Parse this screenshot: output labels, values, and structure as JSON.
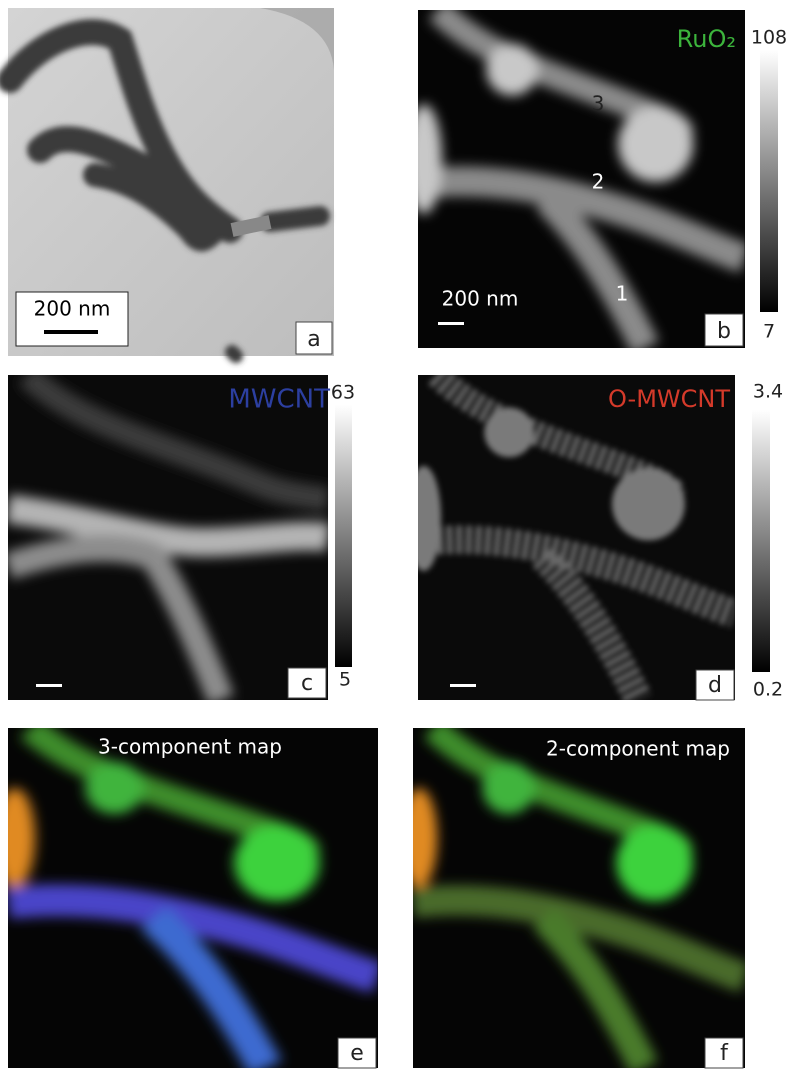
{
  "panels": [
    {
      "label": "a",
      "scale_bar": "200 nm"
    },
    {
      "label": "b",
      "title": "RuO₂",
      "scale_bar": "200 nm",
      "markers": [
        "3",
        "2",
        "1"
      ],
      "colorbar": {
        "max": "108",
        "min": "7"
      }
    },
    {
      "label": "c",
      "title": "MWCNT",
      "colorbar": {
        "max": "63",
        "min": "5"
      }
    },
    {
      "label": "d",
      "title": "O-MWCNT",
      "colorbar": {
        "max": "3.4",
        "min": "0.2"
      }
    },
    {
      "label": "e",
      "title": "3-component map"
    },
    {
      "label": "f",
      "title": "2-component map"
    }
  ]
}
